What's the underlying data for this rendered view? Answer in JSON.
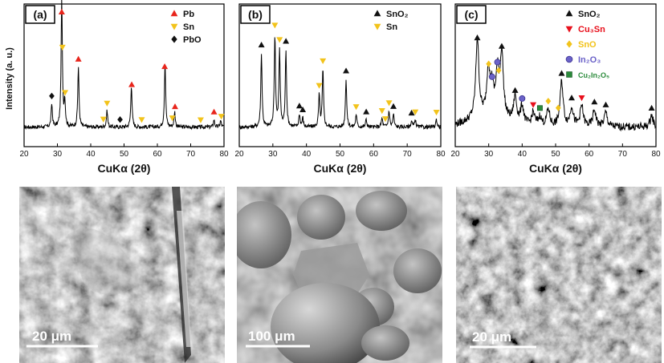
{
  "figure": {
    "y_axis_label": "Intensity (a. u.)",
    "panels": [
      {
        "label": "(a)",
        "xlabel": "CuKα (2θ)",
        "xlim": [
          20,
          80
        ],
        "xticks": [
          20,
          30,
          40,
          50,
          60,
          70,
          80
        ],
        "legend": [
          {
            "name": "Pb",
            "marker": "triangle-up",
            "color": "#e8251c"
          },
          {
            "name": "Sn",
            "marker": "triangle-down",
            "color": "#f2c31b"
          },
          {
            "name": "PbO",
            "marker": "diamond",
            "color": "#111111"
          }
        ],
        "peaks": [
          [
            28.3,
            0.18
          ],
          [
            31.3,
            1.0
          ],
          [
            32.2,
            0.2
          ],
          [
            36.3,
            0.47
          ],
          [
            44.9,
            0.13
          ],
          [
            52.2,
            0.33
          ],
          [
            62.3,
            0.5
          ],
          [
            65.2,
            0.12
          ],
          [
            77.0,
            0.06
          ],
          [
            79.0,
            0.05
          ]
        ],
        "markers": [
          {
            "x": 28.3,
            "s": 2
          },
          {
            "x": 31.3,
            "s": 0
          },
          {
            "x": 31.5,
            "s": 1
          },
          {
            "x": 32.3,
            "s": 1
          },
          {
            "x": 36.3,
            "s": 0
          },
          {
            "x": 43.8,
            "s": 1
          },
          {
            "x": 44.9,
            "s": 1
          },
          {
            "x": 48.8,
            "s": 2
          },
          {
            "x": 52.3,
            "s": 0
          },
          {
            "x": 55.3,
            "s": 1
          },
          {
            "x": 62.2,
            "s": 0
          },
          {
            "x": 64.5,
            "s": 1
          },
          {
            "x": 65.3,
            "s": 0
          },
          {
            "x": 73.0,
            "s": 1
          },
          {
            "x": 77.0,
            "s": 0
          },
          {
            "x": 79.2,
            "s": 1
          }
        ]
      },
      {
        "label": "(b)",
        "xlabel": "CuKα (2θ)",
        "xlim": [
          20,
          80
        ],
        "xticks": [
          20,
          30,
          40,
          50,
          60,
          70,
          80
        ],
        "legend": [
          {
            "name": "SnO₂",
            "marker": "triangle-up",
            "color": "#111111"
          },
          {
            "name": "Sn",
            "marker": "triangle-down",
            "color": "#f2c31b"
          }
        ],
        "peaks": [
          [
            26.6,
            0.58
          ],
          [
            30.6,
            0.72
          ],
          [
            32.0,
            0.6
          ],
          [
            33.9,
            0.6
          ],
          [
            37.9,
            0.1
          ],
          [
            38.9,
            0.07
          ],
          [
            43.8,
            0.25
          ],
          [
            44.9,
            0.45
          ],
          [
            51.8,
            0.38
          ],
          [
            54.8,
            0.1
          ],
          [
            57.8,
            0.06
          ],
          [
            62.5,
            0.07
          ],
          [
            64.6,
            0.13
          ],
          [
            65.9,
            0.1
          ],
          [
            71.3,
            0.05
          ],
          [
            72.4,
            0.06
          ],
          [
            78.7,
            0.06
          ]
        ],
        "markers": [
          {
            "x": 26.6,
            "s": 0
          },
          {
            "x": 30.6,
            "s": 1
          },
          {
            "x": 32.0,
            "s": 1
          },
          {
            "x": 33.9,
            "s": 0
          },
          {
            "x": 37.9,
            "s": 0
          },
          {
            "x": 38.9,
            "s": 0
          },
          {
            "x": 43.8,
            "s": 1
          },
          {
            "x": 44.9,
            "s": 1
          },
          {
            "x": 51.8,
            "s": 0
          },
          {
            "x": 54.8,
            "s": 1
          },
          {
            "x": 57.8,
            "s": 0
          },
          {
            "x": 62.5,
            "s": 1
          },
          {
            "x": 63.5,
            "s": 1
          },
          {
            "x": 64.6,
            "s": 1
          },
          {
            "x": 65.9,
            "s": 0
          },
          {
            "x": 71.3,
            "s": 0
          },
          {
            "x": 72.4,
            "s": 1
          },
          {
            "x": 78.7,
            "s": 1
          }
        ]
      },
      {
        "label": "(c)",
        "xlabel": "CuKα (2θ)",
        "xlim": [
          20,
          80
        ],
        "xticks": [
          20,
          30,
          40,
          50,
          60,
          70,
          80
        ],
        "legend": [
          {
            "name": "SnO₂",
            "marker": "triangle-up",
            "color": "#111111"
          },
          {
            "name": "Cu₃Sn",
            "marker": "triangle-down",
            "color": "#e8101c"
          },
          {
            "name": "SnO",
            "marker": "diamond",
            "color": "#f2c31b"
          },
          {
            "name": "In₂O₃",
            "marker": "circle",
            "color": "#6b62c8"
          },
          {
            "name": "Cu₂In₂O₅",
            "marker": "square",
            "color": "#2a8a3a"
          }
        ],
        "peaks": [
          [
            26.6,
            0.62
          ],
          [
            29.9,
            0.36
          ],
          [
            31.0,
            0.2
          ],
          [
            32.6,
            0.33
          ],
          [
            33.9,
            0.5
          ],
          [
            37.9,
            0.2
          ],
          [
            40.0,
            0.14
          ],
          [
            43.3,
            0.1
          ],
          [
            45.3,
            0.07
          ],
          [
            47.8,
            0.13
          ],
          [
            51.8,
            0.35
          ],
          [
            54.8,
            0.15
          ],
          [
            57.8,
            0.16
          ],
          [
            61.6,
            0.13
          ],
          [
            65.0,
            0.11
          ],
          [
            78.7,
            0.09
          ]
        ],
        "markers": [
          {
            "x": 26.6,
            "s": 0
          },
          {
            "x": 30.0,
            "s": 2
          },
          {
            "x": 31.0,
            "s": 3
          },
          {
            "x": 32.6,
            "s": 3
          },
          {
            "x": 33.0,
            "s": 2
          },
          {
            "x": 33.9,
            "s": 0
          },
          {
            "x": 37.9,
            "s": 0
          },
          {
            "x": 40.0,
            "s": 3
          },
          {
            "x": 43.3,
            "s": 1
          },
          {
            "x": 45.3,
            "s": 4
          },
          {
            "x": 47.8,
            "s": 2
          },
          {
            "x": 50.8,
            "s": 2
          },
          {
            "x": 51.8,
            "s": 0
          },
          {
            "x": 54.8,
            "s": 0
          },
          {
            "x": 57.8,
            "s": 1
          },
          {
            "x": 61.6,
            "s": 0
          },
          {
            "x": 65.0,
            "s": 0
          },
          {
            "x": 78.7,
            "s": 0
          }
        ]
      }
    ],
    "sem_images": [
      {
        "scale_label": "20 μm"
      },
      {
        "scale_label": "100 μm"
      },
      {
        "scale_label": "20 μm"
      }
    ]
  }
}
